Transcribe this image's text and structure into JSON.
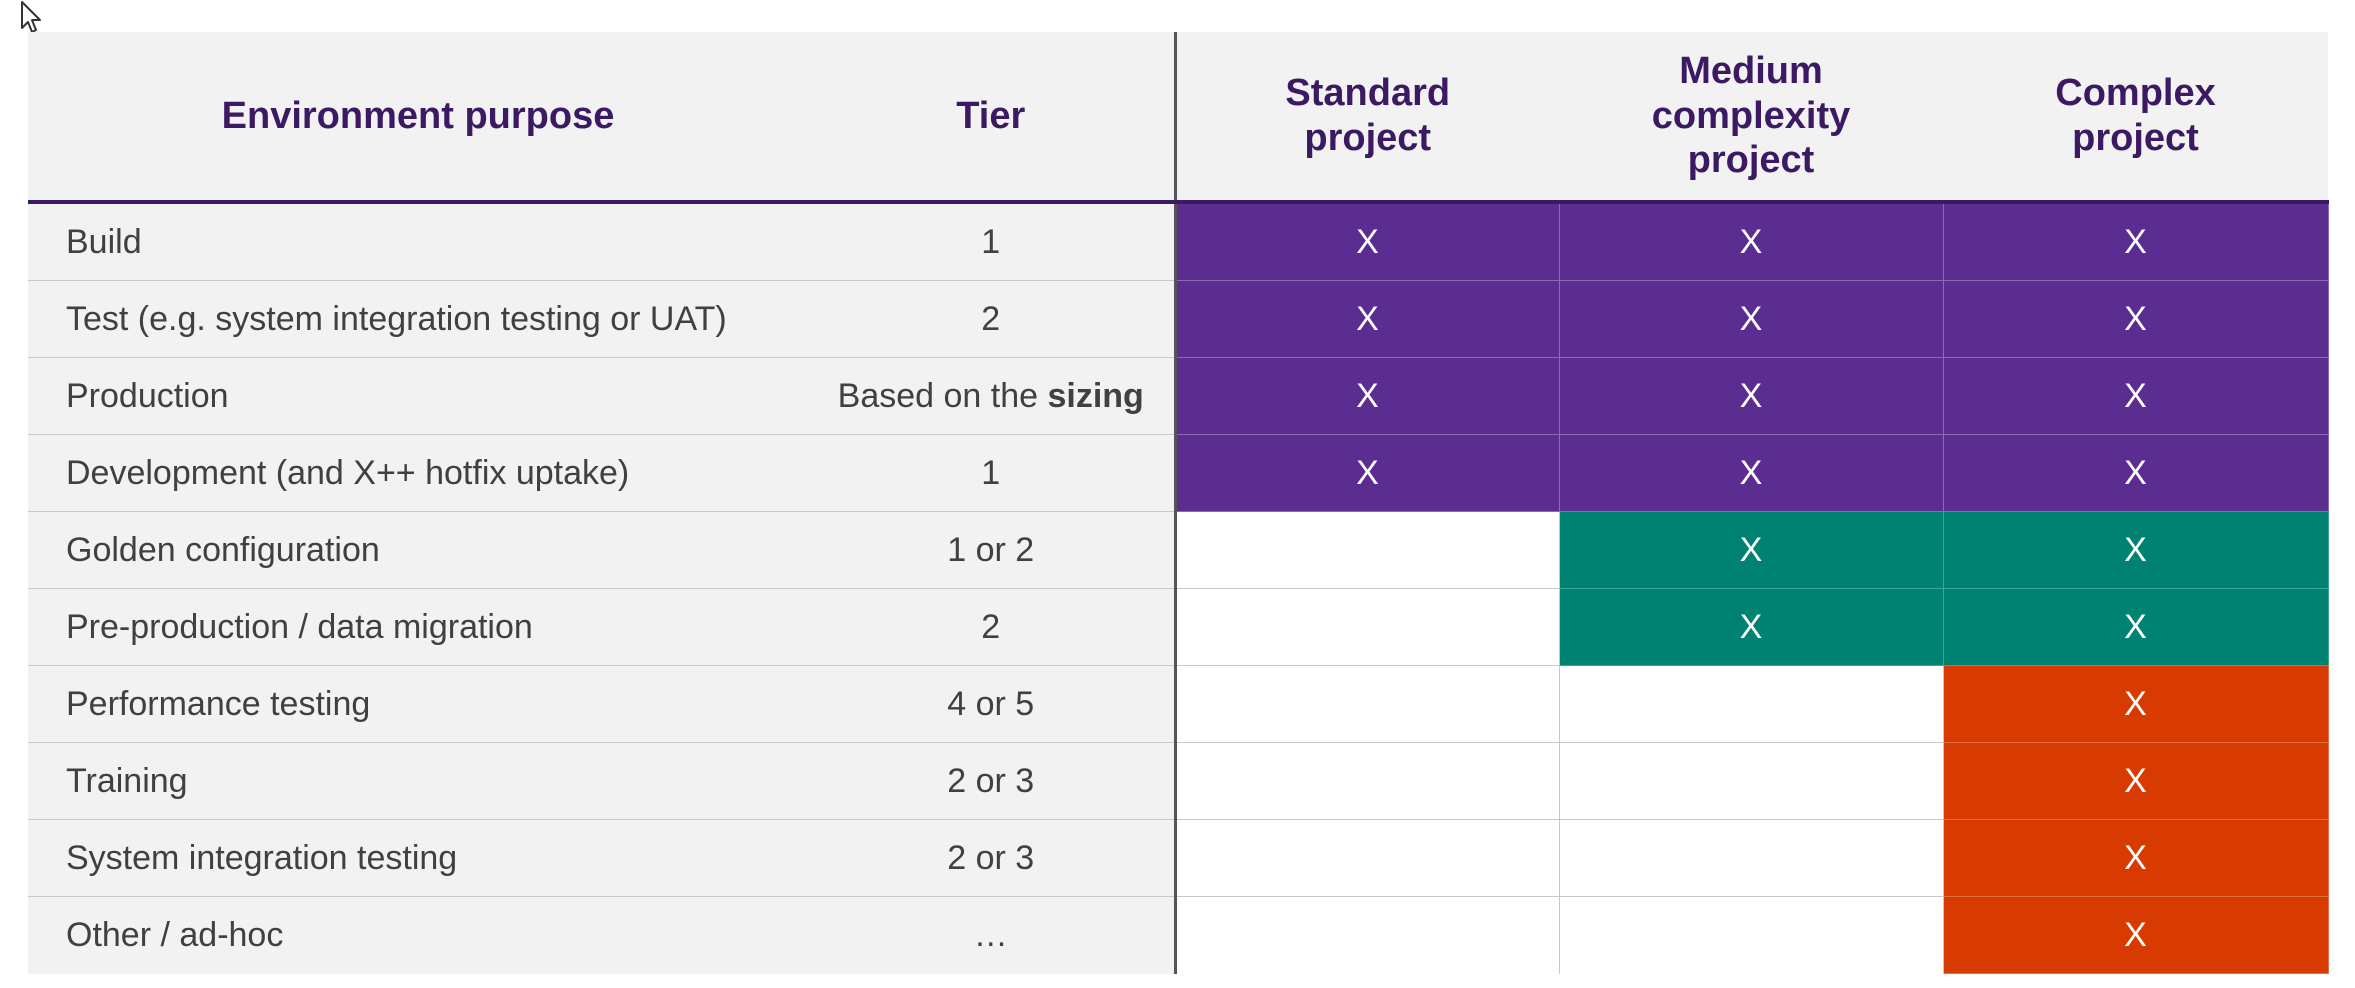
{
  "headers": {
    "purpose": "Environment purpose",
    "tier": "Tier",
    "standard": "Standard project",
    "medium": "Medium complexity project",
    "complex": "Complex project"
  },
  "colors": {
    "purple": "#5b2d90",
    "teal": "#008272",
    "orange": "#d83b01",
    "header_text": "#3b1a63"
  },
  "rows": [
    {
      "purpose": "Build",
      "tier": "1",
      "standard": "X",
      "medium": "X",
      "complex": "X"
    },
    {
      "purpose": "Test (e.g. system integration testing or UAT)",
      "tier": "2",
      "standard": "X",
      "medium": "X",
      "complex": "X"
    },
    {
      "purpose": "Production",
      "tier_prefix": "Based on the ",
      "tier_bold": "sizing",
      "standard": "X",
      "medium": "X",
      "complex": "X"
    },
    {
      "purpose": "Development (and X++ hotfix uptake)",
      "tier": "1",
      "standard": "X",
      "medium": "X",
      "complex": "X"
    },
    {
      "purpose": "Golden configuration",
      "tier": "1 or 2",
      "standard": "",
      "medium": "X",
      "complex": "X"
    },
    {
      "purpose": "Pre-production / data migration",
      "tier": "2",
      "standard": "",
      "medium": "X",
      "complex": "X"
    },
    {
      "purpose": "Performance testing",
      "tier": "4 or 5",
      "standard": "",
      "medium": "",
      "complex": "X"
    },
    {
      "purpose": "Training",
      "tier": "2 or 3",
      "standard": "",
      "medium": "",
      "complex": "X"
    },
    {
      "purpose": "System integration testing",
      "tier": "2 or 3",
      "standard": "",
      "medium": "",
      "complex": "X"
    },
    {
      "purpose": "Other / ad-hoc",
      "tier": "…",
      "standard": "",
      "medium": "",
      "complex": "X"
    }
  ]
}
